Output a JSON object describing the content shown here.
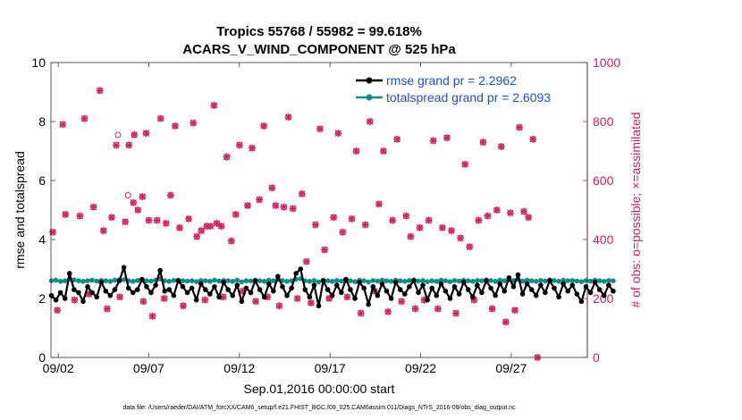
{
  "colors": {
    "rmse": "#000000",
    "spread": "#118a8a",
    "obs": "#cc1f5c",
    "legend_text": "#1f4fd1"
  },
  "chart_data": {
    "type": "line",
    "title_line1": "Tropics 55768 / 55982 = 99.618%",
    "title_line2": "ACARS_V_WIND_COMPONENT @ 525 hPa",
    "xlabel": "Sep.01,2016 00:00:00 start",
    "ylabel_left": "rmse and totalspread",
    "ylabel_right": "# of obs: o=possible; ×=assimilated",
    "footnote": "data file: /Users/raeder/DAI/ATM_forcXX/CAM6_setup/f.e21.FHIST_BGC.f09_025.CAM6assim.011/Diags_NTrS_2016-09/obs_diag_output.nc",
    "xlim": [
      1.6,
      31.2
    ],
    "ylim_left": [
      0,
      10
    ],
    "ylim_right": [
      0,
      1000
    ],
    "x_ticks": [
      2,
      7,
      12,
      17,
      22,
      27
    ],
    "x_tick_labels": [
      "09/02",
      "09/07",
      "09/12",
      "09/17",
      "09/22",
      "09/27"
    ],
    "y_left_ticks": [
      "0",
      "2",
      "4",
      "6",
      "8",
      "10"
    ],
    "y_right_ticks": [
      "0",
      "200",
      "400",
      "600",
      "800",
      "1000"
    ],
    "legend": [
      {
        "label": "rmse grand pr = 2.2962",
        "series": "rmse"
      },
      {
        "label": "totalspread grand pr = 2.6093",
        "series": "totalspread"
      }
    ],
    "series": [
      {
        "name": "rmse",
        "x_start": 1.625,
        "x_step": 0.25,
        "values": [
          2.1,
          1.95,
          2.2,
          2.0,
          2.85,
          2.3,
          2.2,
          1.9,
          2.4,
          2.2,
          2.05,
          2.55,
          2.25,
          2.1,
          2.3,
          2.6,
          3.05,
          2.35,
          2.2,
          2.3,
          2.65,
          2.4,
          2.2,
          2.45,
          2.95,
          2.25,
          2.3,
          2.1,
          2.6,
          2.4,
          2.2,
          2.35,
          1.95,
          2.5,
          2.3,
          2.15,
          2.4,
          2.05,
          2.55,
          2.3,
          2.1,
          2.45,
          1.9,
          2.35,
          2.2,
          2.6,
          2.3,
          2.05,
          2.5,
          2.25,
          2.75,
          2.4,
          2.1,
          2.35,
          2.85,
          3.0,
          2.3,
          2.05,
          2.45,
          1.75,
          2.6,
          2.3,
          2.1,
          2.45,
          2.2,
          2.65,
          2.3,
          2.0,
          2.55,
          2.35,
          1.8,
          2.4,
          2.1,
          2.5,
          2.25,
          2.0,
          2.55,
          2.3,
          2.15,
          2.4,
          2.6,
          2.2,
          2.45,
          1.95,
          2.35,
          2.1,
          2.5,
          2.25,
          2.0,
          2.4,
          2.15,
          2.55,
          2.3,
          2.05,
          2.45,
          2.2,
          2.6,
          2.35,
          2.1,
          2.5,
          2.25,
          2.7,
          2.4,
          2.8,
          2.15,
          2.5,
          2.3,
          2.1,
          2.45,
          2.2,
          2.6,
          2.35,
          2.05,
          2.5,
          2.25,
          2.45,
          2.15,
          1.9,
          2.4,
          2.2,
          2.55,
          2.3,
          2.1,
          2.45,
          2.25
        ]
      },
      {
        "name": "totalspread",
        "x_start": 1.625,
        "x_step": 0.25,
        "values": [
          2.6,
          2.62,
          2.58,
          2.6,
          2.65,
          2.63,
          2.6,
          2.58,
          2.6,
          2.62,
          2.59,
          2.61,
          2.6,
          2.58,
          2.62,
          2.63,
          2.64,
          2.6,
          2.58,
          2.61,
          2.63,
          2.6,
          2.59,
          2.62,
          2.66,
          2.6,
          2.58,
          2.61,
          2.62,
          2.6,
          2.59,
          2.6,
          2.57,
          2.61,
          2.6,
          2.58,
          2.62,
          2.59,
          2.61,
          2.6,
          2.58,
          2.62,
          2.56,
          2.6,
          2.59,
          2.62,
          2.6,
          2.58,
          2.62,
          2.6,
          2.64,
          2.61,
          2.58,
          2.6,
          2.65,
          2.67,
          2.6,
          2.58,
          2.61,
          2.56,
          2.62,
          2.6,
          2.58,
          2.61,
          2.59,
          2.63,
          2.6,
          2.57,
          2.62,
          2.6,
          2.56,
          2.61,
          2.59,
          2.62,
          2.6,
          2.58,
          2.62,
          2.6,
          2.58,
          2.61,
          2.63,
          2.59,
          2.61,
          2.57,
          2.6,
          2.58,
          2.62,
          2.6,
          2.57,
          2.61,
          2.59,
          2.62,
          2.6,
          2.58,
          2.61,
          2.6,
          2.63,
          2.61,
          2.58,
          2.62,
          2.6,
          2.64,
          2.61,
          2.65,
          2.59,
          2.62,
          2.6,
          2.58,
          2.61,
          2.59,
          2.63,
          2.61,
          2.58,
          2.62,
          2.6,
          2.61,
          2.59,
          2.57,
          2.61,
          2.59,
          2.62,
          2.6,
          2.58,
          2.61,
          2.6
        ]
      }
    ],
    "obs": [
      [
        1.7,
        425
      ],
      [
        1.95,
        160
      ],
      [
        2.25,
        790
      ],
      [
        2.4,
        485
      ],
      [
        2.9,
        195
      ],
      [
        3.2,
        480
      ],
      [
        3.45,
        810
      ],
      [
        3.7,
        215
      ],
      [
        3.95,
        510
      ],
      [
        4.3,
        905
      ],
      [
        4.5,
        430
      ],
      [
        4.7,
        165
      ],
      [
        4.95,
        475
      ],
      [
        5.2,
        720
      ],
      [
        5.4,
        205
      ],
      [
        5.7,
        460
      ],
      [
        5.9,
        720
      ],
      [
        6.15,
        525
      ],
      [
        6.2,
        755
      ],
      [
        6.4,
        500
      ],
      [
        6.65,
        545
      ],
      [
        6.7,
        190
      ],
      [
        6.85,
        760
      ],
      [
        7.0,
        465
      ],
      [
        7.2,
        140
      ],
      [
        7.45,
        465
      ],
      [
        7.65,
        810
      ],
      [
        7.85,
        200
      ],
      [
        7.95,
        455
      ],
      [
        8.2,
        550
      ],
      [
        8.45,
        785
      ],
      [
        8.7,
        440
      ],
      [
        8.9,
        175
      ],
      [
        9.2,
        470
      ],
      [
        9.45,
        795
      ],
      [
        9.65,
        410
      ],
      [
        9.9,
        430
      ],
      [
        10.1,
        195
      ],
      [
        10.2,
        445
      ],
      [
        10.4,
        445
      ],
      [
        10.6,
        855
      ],
      [
        10.75,
        455
      ],
      [
        11.0,
        445
      ],
      [
        11.1,
        205
      ],
      [
        11.3,
        680
      ],
      [
        11.55,
        395
      ],
      [
        11.8,
        485
      ],
      [
        12.0,
        720
      ],
      [
        12.2,
        225
      ],
      [
        12.45,
        515
      ],
      [
        12.7,
        710
      ],
      [
        12.9,
        190
      ],
      [
        13.1,
        535
      ],
      [
        13.35,
        785
      ],
      [
        13.55,
        205
      ],
      [
        13.8,
        575
      ],
      [
        14.0,
        515
      ],
      [
        14.2,
        175
      ],
      [
        14.45,
        510
      ],
      [
        14.7,
        815
      ],
      [
        14.95,
        505
      ],
      [
        15.2,
        200
      ],
      [
        15.45,
        555
      ],
      [
        15.7,
        325
      ],
      [
        15.95,
        185
      ],
      [
        16.2,
        450
      ],
      [
        16.45,
        775
      ],
      [
        16.7,
        365
      ],
      [
        16.95,
        200
      ],
      [
        17.2,
        475
      ],
      [
        17.45,
        760
      ],
      [
        17.7,
        425
      ],
      [
        17.95,
        205
      ],
      [
        18.2,
        470
      ],
      [
        18.45,
        700
      ],
      [
        18.7,
        150
      ],
      [
        18.95,
        450
      ],
      [
        19.2,
        800
      ],
      [
        19.45,
        225
      ],
      [
        19.7,
        520
      ],
      [
        19.95,
        700
      ],
      [
        20.2,
        155
      ],
      [
        20.45,
        465
      ],
      [
        20.7,
        740
      ],
      [
        20.95,
        190
      ],
      [
        21.2,
        480
      ],
      [
        21.45,
        410
      ],
      [
        21.7,
        165
      ],
      [
        21.95,
        440
      ],
      [
        22.2,
        195
      ],
      [
        22.45,
        465
      ],
      [
        22.7,
        735
      ],
      [
        22.95,
        165
      ],
      [
        23.2,
        440
      ],
      [
        23.45,
        745
      ],
      [
        23.7,
        430
      ],
      [
        23.95,
        150
      ],
      [
        24.2,
        405
      ],
      [
        24.45,
        655
      ],
      [
        24.7,
        375
      ],
      [
        24.95,
        195
      ],
      [
        25.2,
        465
      ],
      [
        25.45,
        730
      ],
      [
        25.7,
        480
      ],
      [
        25.95,
        165
      ],
      [
        26.2,
        500
      ],
      [
        26.45,
        715
      ],
      [
        26.7,
        120
      ],
      [
        26.95,
        490
      ],
      [
        27.2,
        160
      ],
      [
        27.45,
        780
      ],
      [
        27.7,
        495
      ],
      [
        27.95,
        475
      ],
      [
        28.2,
        740
      ],
      [
        28.45,
        0
      ]
    ],
    "obs_possible_extra": [
      [
        5.3,
        755
      ],
      [
        5.85,
        550
      ]
    ]
  }
}
